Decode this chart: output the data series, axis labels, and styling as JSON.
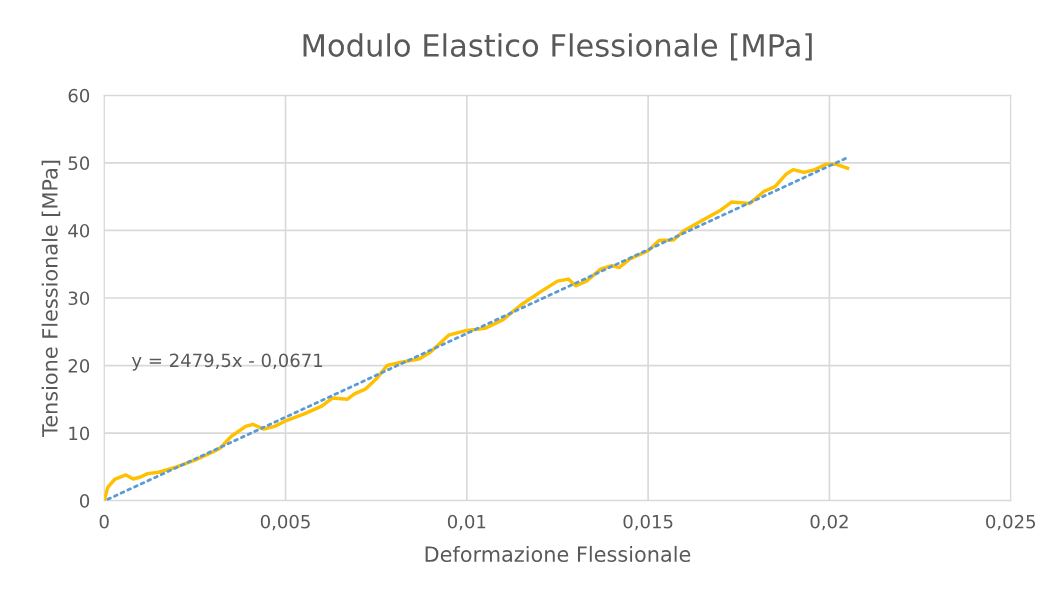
{
  "chart_data": {
    "type": "line",
    "title": "Modulo Elastico Flessionale [MPa]",
    "xlabel": "Deformazione Flessionale",
    "ylabel": "Tensione Flessionale [MPa]",
    "annotations": [
      "y = 2479,5x - 0,0671"
    ],
    "xlim": [
      0,
      0.025
    ],
    "ylim": [
      0,
      60
    ],
    "xticks": [
      0,
      {
        "value": 0.005,
        "label": "0,005"
      },
      {
        "value": 0.01,
        "label": "0,01"
      },
      {
        "value": 0.015,
        "label": "0,015"
      },
      {
        "value": 0.02,
        "label": "0,02"
      },
      {
        "value": 0.025,
        "label": "0,025"
      }
    ],
    "yticks": [
      0,
      10,
      20,
      30,
      40,
      50,
      60
    ],
    "grid": true,
    "series": [
      {
        "color": "#ffc000",
        "line_style": "solid",
        "x": [
          0,
          0.0001,
          0.0003,
          0.0006,
          0.0008,
          0.001,
          0.0012,
          0.0015,
          0.002,
          0.0025,
          0.003,
          0.0032,
          0.0035,
          0.0039,
          0.0041,
          0.0044,
          0.0047,
          0.005,
          0.0055,
          0.006,
          0.0063,
          0.0067,
          0.0069,
          0.0072,
          0.0075,
          0.0078,
          0.0082,
          0.0087,
          0.009,
          0.0095,
          0.01,
          0.0105,
          0.011,
          0.0115,
          0.012,
          0.0125,
          0.0128,
          0.013,
          0.0133,
          0.0137,
          0.014,
          0.0142,
          0.0145,
          0.015,
          0.0153,
          0.0157,
          0.016,
          0.0165,
          0.017,
          0.0173,
          0.0178,
          0.0182,
          0.0185,
          0.0188,
          0.019,
          0.0193,
          0.0196,
          0.0199,
          0.0202,
          0.0205
        ],
        "values": [
          0,
          2,
          3.2,
          3.8,
          3.2,
          3.5,
          4.0,
          4.2,
          5.0,
          6.0,
          7.2,
          7.8,
          9.5,
          11.0,
          11.3,
          10.6,
          11.0,
          11.8,
          12.8,
          14.0,
          15.2,
          15.0,
          15.8,
          16.5,
          18,
          20,
          20.5,
          21.0,
          22,
          24.5,
          25.2,
          25.5,
          26.8,
          29.0,
          30.8,
          32.5,
          32.8,
          31.8,
          32.5,
          34.3,
          34.8,
          34.5,
          35.8,
          37.0,
          38.5,
          38.6,
          40.0,
          41.5,
          43.0,
          44.2,
          44.0,
          45.8,
          46.5,
          48.3,
          49.0,
          48.6,
          49.0,
          49.8,
          49.8,
          49.2
        ]
      },
      {
        "color": "#5b9bd5",
        "line_style": "dotted",
        "x": [
          0.0001,
          0.0205
        ],
        "values": [
          0.2,
          50.8
        ]
      }
    ]
  }
}
